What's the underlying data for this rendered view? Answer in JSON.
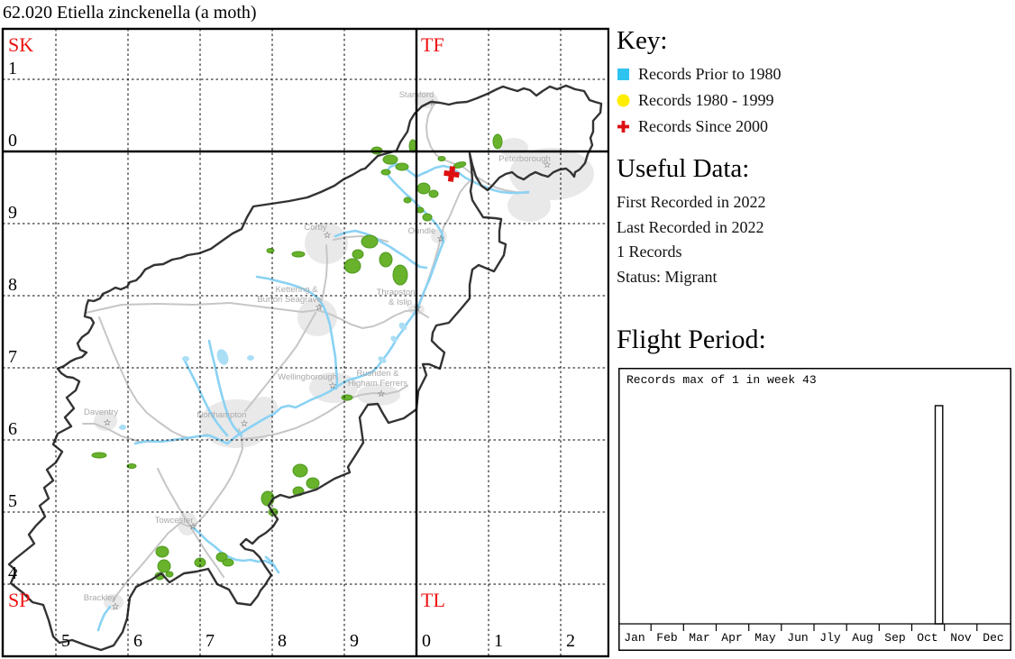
{
  "page": {
    "title": "62.020 Etiella zinckenella (a moth)"
  },
  "map": {
    "grid_letters": {
      "nw": "SK",
      "ne": "TF",
      "sw": "SP",
      "se": "TL"
    },
    "grid_letter_color": "#ee1111",
    "row_labels": [
      "1",
      "0",
      "9",
      "8",
      "7",
      "6",
      "5",
      "4"
    ],
    "col_labels": [
      "5",
      "6",
      "7",
      "8",
      "9",
      "0",
      "1",
      "2"
    ],
    "town_labels": [
      "Stamford",
      "Peterborough",
      "Oundle",
      "Corby",
      "Kettering &",
      "Burton Seagrave",
      "Thrapston",
      "& Islip",
      "Wellingborough",
      "Rushden &",
      "Higham Ferrers",
      "Northampton",
      "Daventry",
      "Towcester",
      "Brackley"
    ],
    "marker_glyph": "☆",
    "record_count_on_map": 1
  },
  "key": {
    "heading": "Key:",
    "items": [
      {
        "label": "Records Prior to 1980",
        "marker": "square",
        "color": "#2fc3ef"
      },
      {
        "label": "Records 1980 - 1999",
        "marker": "circle",
        "color": "#ffee00"
      },
      {
        "label": "Records Since 2000",
        "marker": "cross",
        "color": "#dd1111"
      }
    ]
  },
  "useful_data": {
    "heading": "Useful Data:",
    "lines": [
      "First Recorded in 2022",
      "Last Recorded in 2022",
      "1 Records",
      "Status: Migrant"
    ]
  },
  "flight": {
    "heading": "Flight Period:"
  },
  "chart_data": {
    "type": "bar",
    "title": "Flight Period",
    "note": "Records max of 1 in week 43",
    "x_unit": "week",
    "x_range": [
      1,
      52
    ],
    "weeks": [
      43
    ],
    "values": [
      1
    ],
    "max_value": 1,
    "max_week": 43,
    "months": [
      "Jan",
      "Feb",
      "Mar",
      "Apr",
      "May",
      "Jun",
      "Jly",
      "Aug",
      "Sep",
      "Oct",
      "Nov",
      "Dec"
    ],
    "ylim": [
      0,
      1
    ],
    "grid": false,
    "bar_fill": "#ffffff",
    "bar_stroke": "#000000"
  }
}
